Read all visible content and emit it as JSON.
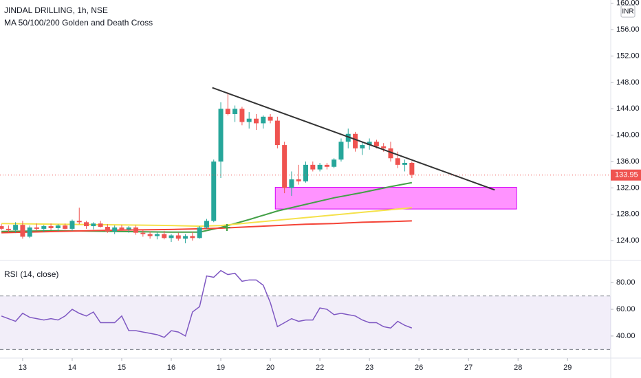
{
  "chart_data": [
    {
      "type": "candlestick",
      "title": "JINDAL DRILLING, 1h, NSE",
      "subtitle": "MA 50/100/200 Golden and Death Cross",
      "currency": "INR",
      "up_color": "#26a69a",
      "down_color": "#ef5350",
      "xlim": [
        -3.2,
        83.1
      ],
      "ylim": [
        121.1,
        160.5
      ],
      "xticks": [
        {
          "value": 0,
          "label": "13"
        },
        {
          "value": 7,
          "label": "14"
        },
        {
          "value": 14,
          "label": "15"
        },
        {
          "value": 21,
          "label": "16"
        },
        {
          "value": 28,
          "label": "19"
        },
        {
          "value": 35,
          "label": "20"
        },
        {
          "value": 42,
          "label": "22"
        },
        {
          "value": 49,
          "label": "23"
        },
        {
          "value": 56,
          "label": "26"
        },
        {
          "value": 63,
          "label": "27"
        },
        {
          "value": 70,
          "label": "28"
        },
        {
          "value": 77,
          "label": "29"
        }
      ],
      "yticks": [
        {
          "value": 124,
          "label": "124.00"
        },
        {
          "value": 128,
          "label": "128.00"
        },
        {
          "value": 132,
          "label": "132.00"
        },
        {
          "value": 136,
          "label": "136.00"
        },
        {
          "value": 140,
          "label": "140.00"
        },
        {
          "value": 144,
          "label": "144.00"
        },
        {
          "value": 148,
          "label": "148.00"
        },
        {
          "value": 152,
          "label": "152.00"
        },
        {
          "value": 156,
          "label": "156.00"
        },
        {
          "value": 160,
          "label": "160.00"
        }
      ],
      "last_price": 133.95,
      "x": [
        -3,
        -2,
        -1,
        0,
        1,
        2,
        3,
        4,
        5,
        6,
        7,
        8,
        9,
        10,
        11,
        12,
        13,
        14,
        15,
        16,
        17,
        18,
        19,
        20,
        21,
        22,
        23,
        24,
        25,
        26,
        27,
        28,
        29,
        30,
        31,
        32,
        33,
        34,
        35,
        36,
        37,
        38,
        39,
        40,
        41,
        42,
        43,
        44,
        45,
        46,
        47,
        48,
        49,
        50,
        51,
        52,
        53,
        54,
        55
      ],
      "ohlc": [
        [
          126.2,
          126.5,
          125.6,
          125.8
        ],
        [
          125.8,
          126.3,
          125.3,
          125.6
        ],
        [
          125.6,
          126.8,
          125.2,
          126.4
        ],
        [
          126.4,
          127.0,
          124.3,
          124.6
        ],
        [
          124.6,
          126.3,
          124.4,
          126.0
        ],
        [
          126.0,
          126.6,
          125.5,
          125.8
        ],
        [
          125.8,
          126.4,
          125.3,
          126.2
        ],
        [
          126.2,
          126.6,
          125.6,
          125.9
        ],
        [
          125.9,
          126.5,
          125.4,
          126.3
        ],
        [
          126.3,
          126.6,
          125.7,
          125.8
        ],
        [
          125.8,
          127.2,
          125.5,
          127.0
        ],
        [
          127.0,
          129.0,
          126.5,
          126.8
        ],
        [
          126.8,
          127.0,
          125.8,
          126.2
        ],
        [
          126.2,
          126.8,
          125.7,
          126.6
        ],
        [
          126.6,
          127.0,
          126.0,
          126.1
        ],
        [
          126.1,
          126.5,
          125.2,
          125.4
        ],
        [
          125.4,
          126.3,
          125.0,
          126.0
        ],
        [
          126.0,
          126.4,
          125.5,
          125.7
        ],
        [
          125.7,
          126.2,
          125.2,
          126.0
        ],
        [
          126.0,
          126.3,
          124.9,
          125.2
        ],
        [
          125.2,
          125.6,
          124.6,
          125.0
        ],
        [
          125.0,
          125.4,
          124.3,
          124.7
        ],
        [
          124.7,
          125.3,
          124.2,
          125.0
        ],
        [
          125.0,
          125.5,
          124.2,
          124.4
        ],
        [
          124.4,
          125.0,
          123.8,
          124.8
        ],
        [
          124.8,
          125.2,
          124.0,
          124.3
        ],
        [
          124.3,
          125.0,
          123.6,
          124.7
        ],
        [
          124.7,
          125.3,
          124.0,
          124.4
        ],
        [
          124.4,
          126.2,
          124.3,
          126.0
        ],
        [
          126.0,
          127.3,
          125.8,
          127.0
        ],
        [
          127.0,
          136.3,
          126.8,
          136.0
        ],
        [
          136.0,
          145.0,
          133.5,
          144.0
        ],
        [
          144.0,
          146.5,
          143.0,
          143.2
        ],
        [
          143.2,
          144.5,
          142.0,
          144.0
        ],
        [
          144.0,
          144.3,
          141.5,
          142.0
        ],
        [
          142.0,
          143.5,
          141.0,
          142.5
        ],
        [
          142.5,
          143.2,
          140.8,
          141.8
        ],
        [
          141.8,
          143.0,
          141.0,
          142.8
        ],
        [
          142.8,
          143.2,
          141.8,
          142.2
        ],
        [
          142.2,
          142.8,
          138.0,
          138.5
        ],
        [
          138.5,
          139.0,
          131.2,
          132.0
        ],
        [
          132.0,
          134.5,
          130.8,
          133.3
        ],
        [
          133.3,
          135.5,
          132.5,
          133.0
        ],
        [
          133.0,
          136.0,
          132.8,
          135.5
        ],
        [
          135.5,
          136.0,
          134.5,
          134.8
        ],
        [
          134.8,
          135.8,
          134.5,
          135.5
        ],
        [
          135.5,
          135.8,
          134.8,
          135.2
        ],
        [
          135.2,
          136.5,
          135.0,
          136.3
        ],
        [
          136.3,
          139.5,
          136.0,
          139.0
        ],
        [
          139.0,
          141.0,
          138.0,
          140.2
        ],
        [
          140.2,
          140.5,
          137.5,
          138.0
        ],
        [
          138.0,
          139.0,
          137.0,
          138.5
        ],
        [
          138.5,
          139.5,
          137.8,
          139.0
        ],
        [
          139.0,
          139.3,
          138.0,
          138.3
        ],
        [
          138.3,
          138.8,
          137.5,
          138.0
        ],
        [
          138.0,
          139.0,
          136.0,
          136.5
        ],
        [
          136.5,
          137.5,
          135.0,
          135.5
        ],
        [
          135.5,
          136.3,
          134.5,
          135.8
        ],
        [
          135.8,
          136.0,
          133.5,
          134.0
        ]
      ],
      "series": [
        {
          "color": "#43a047",
          "x": [
            -3,
            5,
            13,
            21,
            25,
            28,
            32,
            36,
            40,
            44,
            48,
            52,
            55
          ],
          "values": [
            125.4,
            125.5,
            125.4,
            125.3,
            125.3,
            126.0,
            127.2,
            128.5,
            129.5,
            130.5,
            131.3,
            132.2,
            132.8
          ]
        },
        {
          "color": "#f5e14a",
          "x": [
            -3,
            5,
            13,
            21,
            25,
            28,
            32,
            36,
            40,
            44,
            48,
            52,
            55
          ],
          "values": [
            126.6,
            126.5,
            126.4,
            126.3,
            126.2,
            126.3,
            126.7,
            127.1,
            127.5,
            127.9,
            128.3,
            128.7,
            129.0
          ]
        },
        {
          "color": "#f44336",
          "x": [
            -3,
            5,
            13,
            21,
            25,
            28,
            32,
            36,
            40,
            44,
            48,
            52,
            55
          ],
          "values": [
            125.2,
            125.4,
            125.6,
            125.7,
            125.8,
            125.9,
            126.1,
            126.3,
            126.5,
            126.6,
            126.8,
            126.9,
            127.0
          ]
        }
      ],
      "trendline": {
        "color": "#333333",
        "x": [
          26.8,
          66.7
        ],
        "y": [
          147.2,
          131.7
        ]
      },
      "zone": {
        "color": "#ff80ff",
        "x": [
          35.7,
          69.8
        ],
        "y": [
          128.8,
          132.1
        ]
      }
    },
    {
      "type": "line",
      "title": "RSI (14, close)",
      "color": "#7e57c2",
      "ylim": [
        24,
        94
      ],
      "yticks": [
        {
          "value": 40,
          "label": "40.00"
        },
        {
          "value": 60,
          "label": "60.00"
        },
        {
          "value": 80,
          "label": "80.00"
        }
      ],
      "band": [
        30,
        70
      ],
      "values": [
        55,
        53,
        51,
        57,
        54,
        53,
        52,
        53,
        52,
        55,
        60,
        57,
        55,
        58,
        50,
        50,
        50,
        55,
        44,
        44,
        43,
        42,
        41,
        39,
        44,
        43,
        40,
        58,
        62,
        85,
        84,
        89,
        86,
        87,
        81,
        82,
        82,
        78,
        65,
        47,
        50,
        53,
        51,
        52,
        52,
        61,
        60,
        56,
        57,
        56,
        55,
        52,
        50,
        50,
        47,
        46,
        51,
        48,
        46
      ]
    }
  ]
}
